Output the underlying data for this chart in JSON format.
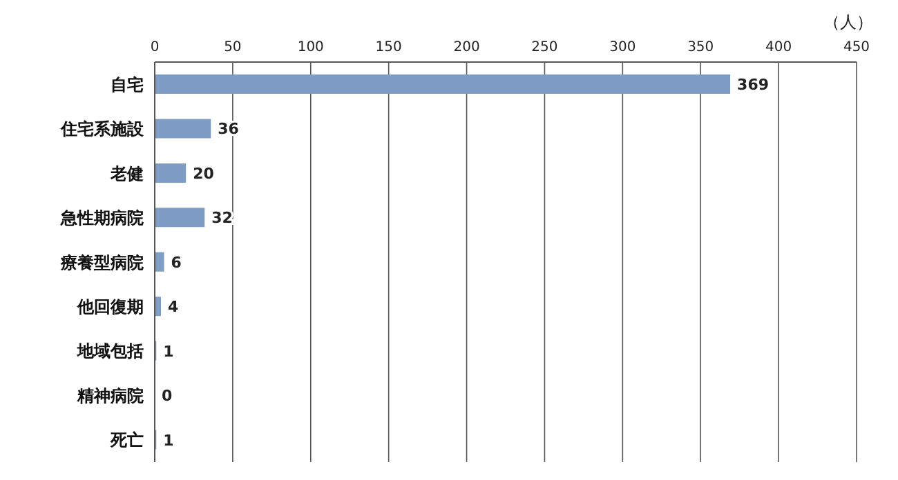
{
  "chart_data": {
    "type": "bar",
    "orientation": "horizontal",
    "xlabel": "（人）",
    "categories": [
      "自宅",
      "住宅系施設",
      "老健",
      "急性期病院",
      "療養型病院",
      "他回復期",
      "地域包括",
      "精神病院",
      "死亡"
    ],
    "values": [
      369,
      36,
      20,
      32,
      6,
      4,
      1,
      0,
      1
    ],
    "color": "#7f9cc4",
    "xlim": [
      0,
      450
    ],
    "xticks": [
      0,
      50,
      100,
      150,
      200,
      250,
      300,
      350,
      400,
      450
    ],
    "grid": "x",
    "data_labels": true,
    "legend": false
  }
}
